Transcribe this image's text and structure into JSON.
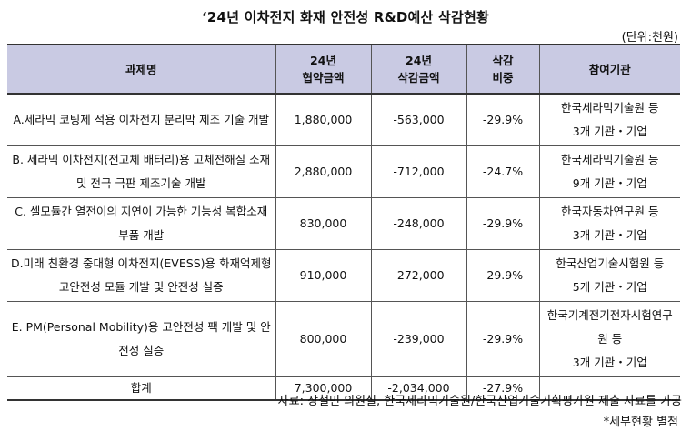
{
  "title": "‘24년 이차전지 화재 안전성 R&D예산 삭감현황",
  "unit": "(단위:천원)",
  "headers": {
    "task": "과제명",
    "contract": "24년\n협약금액",
    "cut": "24년\n삭감금액",
    "ratio": "삭감\n비중",
    "org": "참여기관"
  },
  "rows": [
    {
      "task": "A.세라믹 코팅제 적용 이차전지 분리막 제조 기술 개발",
      "contract": "1,880,000",
      "cut": "-563,000",
      "ratio": "-29.9%",
      "org": "한국세라믹기술원 등\n3개 기관・기업"
    },
    {
      "task": "B. 세라믹 이차전지(전고체 배터리)용 고체전해질 소재 및 전극 극판 제조기술 개발",
      "contract": "2,880,000",
      "cut": "-712,000",
      "ratio": "-24.7%",
      "org": "한국세라믹기술원 등\n9개 기관・기업"
    },
    {
      "task": "C. 셀모듈간 열전이의 지연이 가능한 기능성 복합소재부품 개발",
      "contract": "830,000",
      "cut": "-248,000",
      "ratio": "-29.9%",
      "org": "한국자동차연구원 등\n3개 기관・기업"
    },
    {
      "task": "D.미래 친환경 중대형 이차전지(EVESS)용 화재억제형 고안전성 모듈 개발 및 안전성 실증",
      "contract": "910,000",
      "cut": "-272,000",
      "ratio": "-29.9%",
      "org": "한국산업기술시험원 등\n5개 기관・기업"
    },
    {
      "task": "E. PM(Personal Mobility)용 고안전성 팩 개발 및 안전성 실증",
      "contract": "800,000",
      "cut": "-239,000",
      "ratio": "-29.9%",
      "org": "한국기계전기전자시험연구원 등\n3개 기관・기업"
    }
  ],
  "total": {
    "label": "합계",
    "contract": "7,300,000",
    "cut": "-2,034,000",
    "ratio": "-27.9%",
    "org": ""
  },
  "source": "자료: 장철민 의원실, 한국세라믹기술원/한국산업기술기획평가원 제출 자료를 가공",
  "note": "*세부현황 별첨"
}
